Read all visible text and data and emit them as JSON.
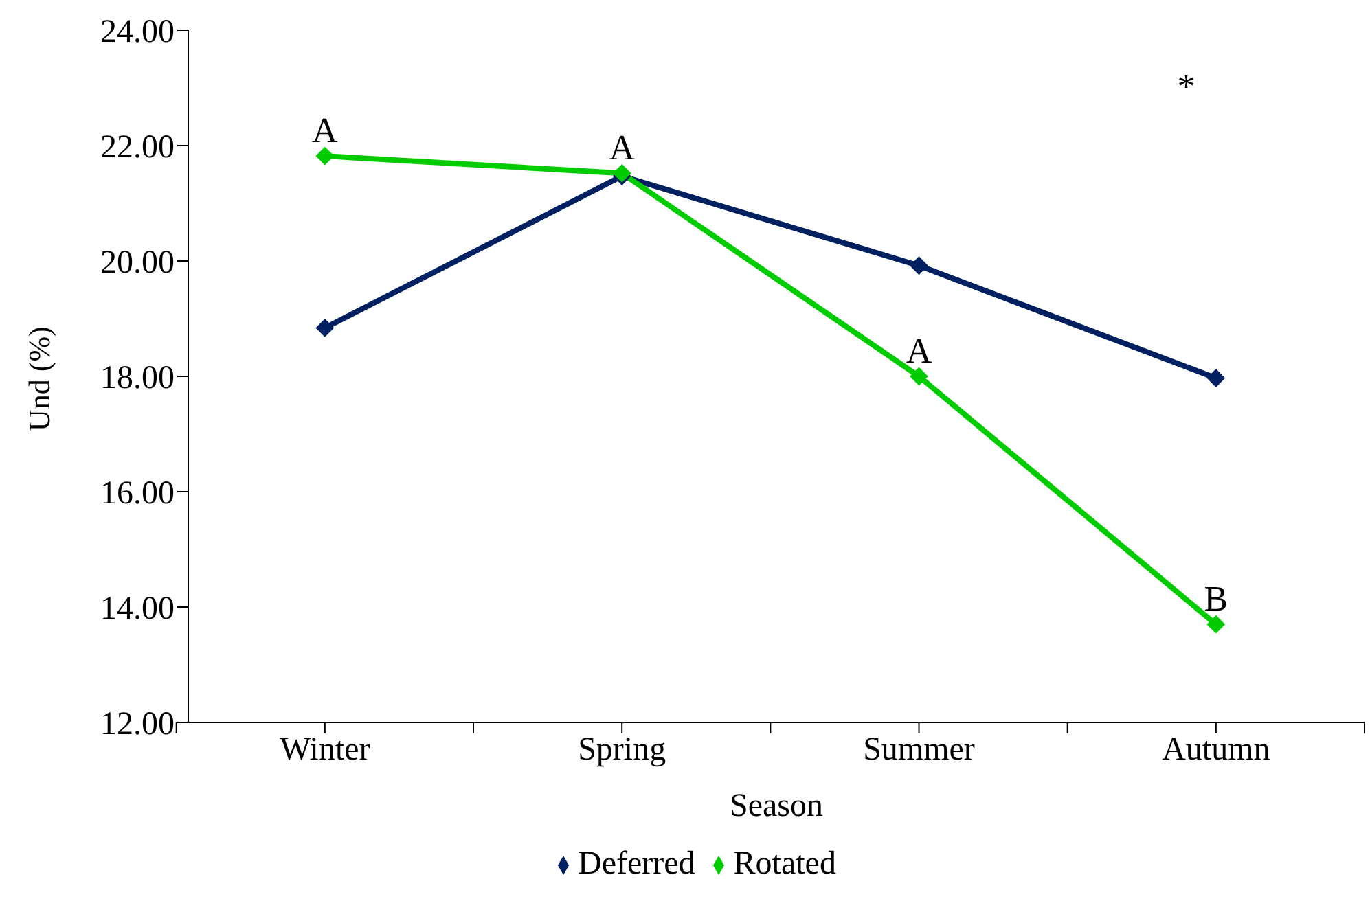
{
  "chart_data": {
    "type": "line",
    "xlabel": "Season",
    "ylabel": "Und (%)",
    "categories": [
      "Winter",
      "Spring",
      "Summer",
      "Autumn"
    ],
    "series": [
      {
        "name": "Deferred",
        "color": "#002060",
        "values": [
          18.84,
          21.47,
          19.92,
          17.97
        ]
      },
      {
        "name": "Rotated",
        "color": "#00cc00",
        "values": [
          21.82,
          21.52,
          18.0,
          13.7
        ]
      }
    ],
    "ylim": [
      12,
      24
    ],
    "yticks": [
      {
        "value": 12,
        "label": "12.00"
      },
      {
        "value": 14,
        "label": "14.00"
      },
      {
        "value": 16,
        "label": "16.00"
      },
      {
        "value": 18,
        "label": "18.00"
      },
      {
        "value": 20,
        "label": "20.00"
      },
      {
        "value": 22,
        "label": "22.00"
      },
      {
        "value": 24,
        "label": "24.00"
      }
    ],
    "annotations": [
      {
        "text": "A",
        "x": "Winter",
        "y": 21.82
      },
      {
        "text": "A",
        "x": "Spring",
        "y": 21.52
      },
      {
        "text": "A",
        "x": "Summer",
        "y": 18.0
      },
      {
        "text": "B",
        "x": "Autumn",
        "y": 13.7
      },
      "*"
    ],
    "grid": false,
    "legend": "bottom",
    "marker": "diamond",
    "line_style": "solid"
  }
}
